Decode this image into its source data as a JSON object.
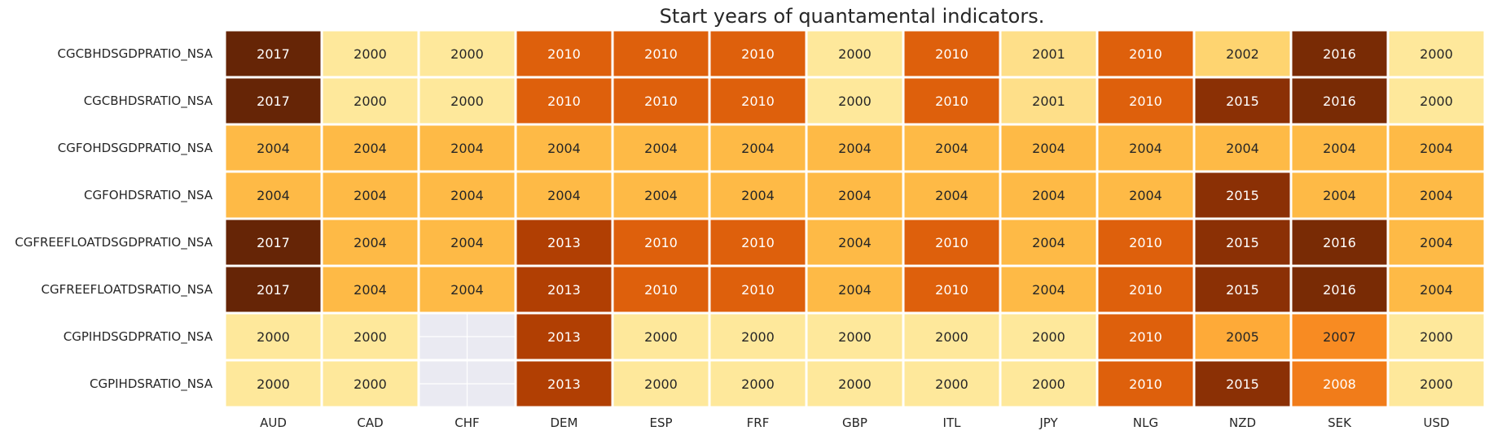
{
  "chart_data": {
    "type": "heatmap",
    "title": "Start years of quantamental indicators.",
    "xlabel": "",
    "ylabel": "",
    "columns": [
      "AUD",
      "CAD",
      "CHF",
      "DEM",
      "ESP",
      "FRF",
      "GBP",
      "ITL",
      "JPY",
      "NLG",
      "NZD",
      "SEK",
      "USD"
    ],
    "rows": [
      "CGCBHDSGDPRATIO_NSA",
      "CGCBHDSRATIO_NSA",
      "CGFOHDSGDPRATIO_NSA",
      "CGFOHDSRATIO_NSA",
      "CGFREEFLOATDSGDPRATIO_NSA",
      "CGFREEFLOATDSRATIO_NSA",
      "CGPIHDSGDPRATIO_NSA",
      "CGPIHDSRATIO_NSA"
    ],
    "values": [
      [
        2017,
        2000,
        2000,
        2010,
        2010,
        2010,
        2000,
        2010,
        2001,
        2010,
        2002,
        2016,
        2000
      ],
      [
        2017,
        2000,
        2000,
        2010,
        2010,
        2010,
        2000,
        2010,
        2001,
        2010,
        2015,
        2016,
        2000
      ],
      [
        2004,
        2004,
        2004,
        2004,
        2004,
        2004,
        2004,
        2004,
        2004,
        2004,
        2004,
        2004,
        2004
      ],
      [
        2004,
        2004,
        2004,
        2004,
        2004,
        2004,
        2004,
        2004,
        2004,
        2004,
        2015,
        2004,
        2004
      ],
      [
        2017,
        2004,
        2004,
        2013,
        2010,
        2010,
        2004,
        2010,
        2004,
        2010,
        2015,
        2016,
        2004
      ],
      [
        2017,
        2004,
        2004,
        2013,
        2010,
        2010,
        2004,
        2010,
        2004,
        2010,
        2015,
        2016,
        2004
      ],
      [
        2000,
        2000,
        null,
        2013,
        2000,
        2000,
        2000,
        2000,
        2000,
        2010,
        2005,
        2007,
        2000
      ],
      [
        2000,
        2000,
        null,
        2013,
        2000,
        2000,
        2000,
        2000,
        2000,
        2010,
        2015,
        2008,
        2000
      ]
    ],
    "colormap": "YlOrBr",
    "value_range": [
      2000,
      2017
    ],
    "colorbar": false,
    "missing_color": "#eaeaf2"
  }
}
